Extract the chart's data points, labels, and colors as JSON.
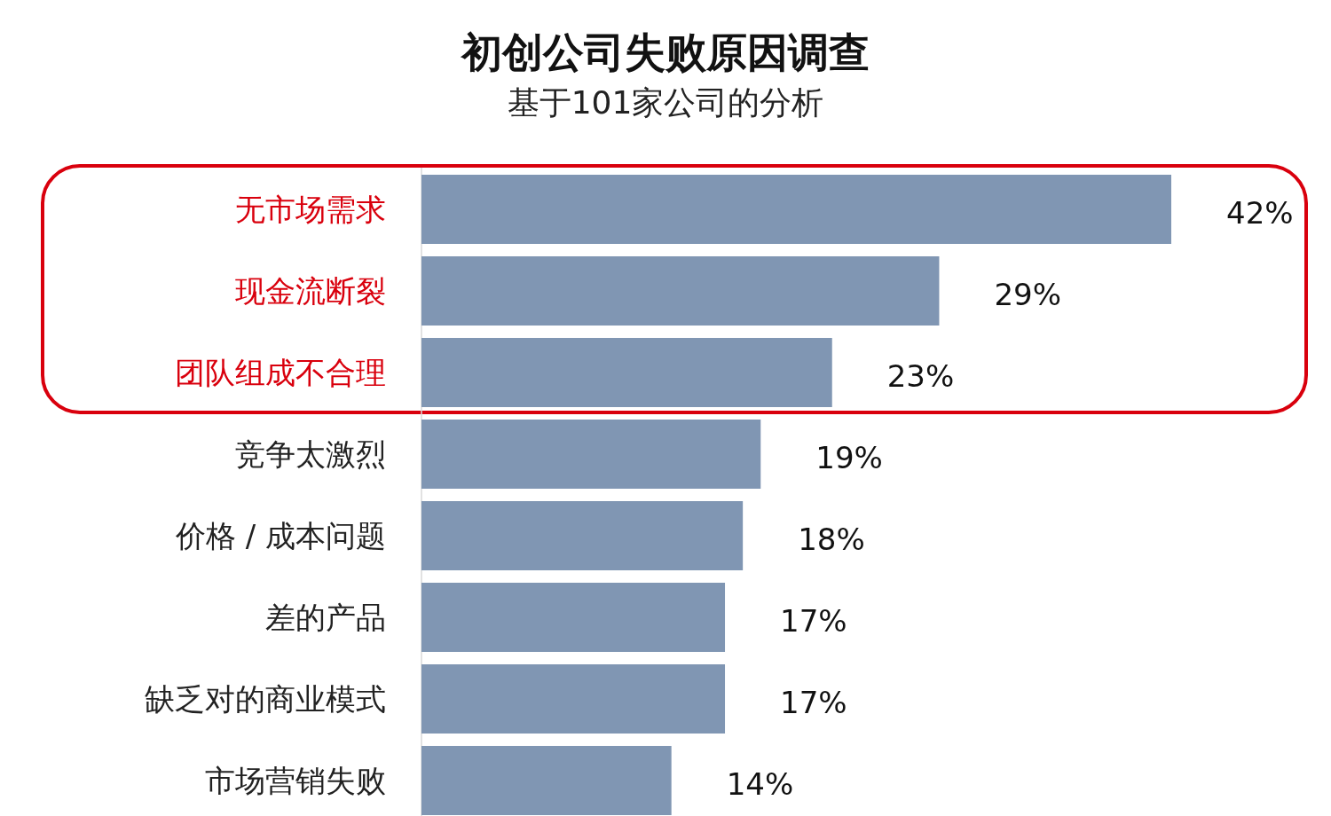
{
  "chart_data": {
    "type": "bar",
    "orientation": "horizontal",
    "title": "初创公司失败原因调查",
    "subtitle": "基于101家公司的分析",
    "categories": [
      "无市场需求",
      "现金流断裂",
      "团队组成不合理",
      "竞争太激烈",
      "价格 / 成本问题",
      "差的产品",
      "缺乏对的商业模式",
      "市场营销失败"
    ],
    "values": [
      42,
      29,
      23,
      19,
      18,
      17,
      17,
      14
    ],
    "value_labels": [
      "42%",
      "29%",
      "23%",
      "19%",
      "18%",
      "17%",
      "17%",
      "14%"
    ],
    "color": "#8096b3"
  }
}
